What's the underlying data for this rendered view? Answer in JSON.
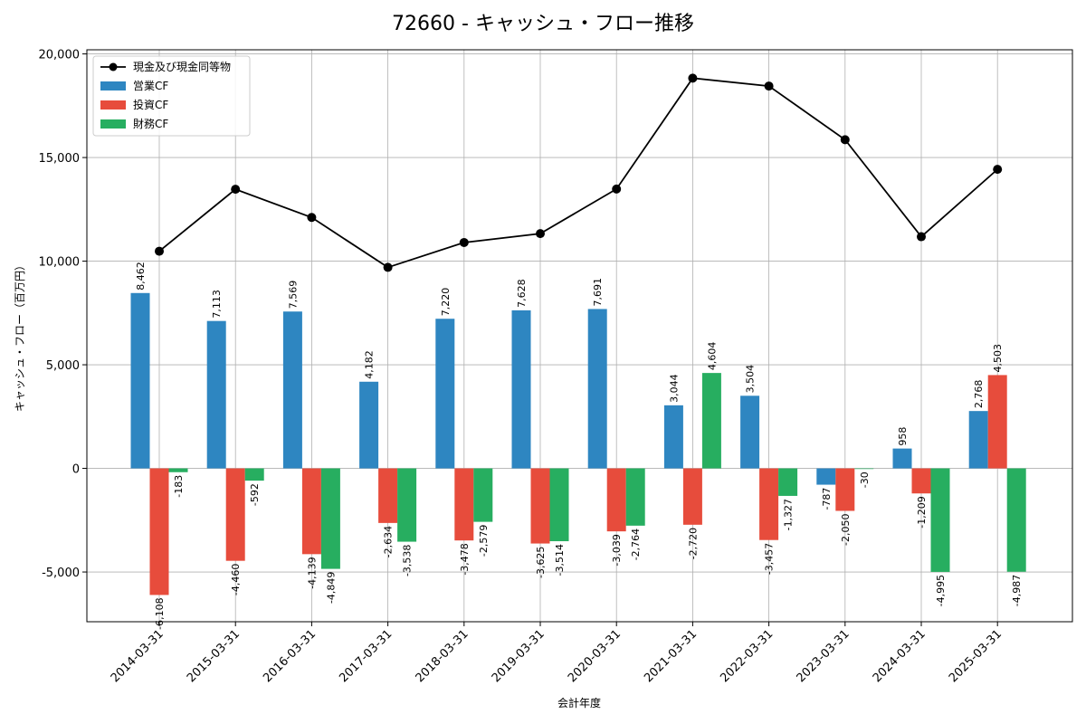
{
  "chart_data": {
    "type": "bar",
    "title": "72660 - キャッシュ・フロー推移",
    "xlabel": "会計年度",
    "ylabel": "キャッシュ・フロー（百万円）",
    "categories": [
      "2014-03-31",
      "2015-03-31",
      "2016-03-31",
      "2017-03-31",
      "2018-03-31",
      "2019-03-31",
      "2020-03-31",
      "2021-03-31",
      "2022-03-31",
      "2023-03-31",
      "2024-03-31",
      "2025-03-31"
    ],
    "ylim": [
      -7400,
      20200
    ],
    "yticks": [
      -5000,
      0,
      5000,
      10000,
      15000,
      20000
    ],
    "ytick_labels": [
      "-5,000",
      "0",
      "5,000",
      "10,000",
      "15,000",
      "20,000"
    ],
    "grid": true,
    "legend_position": "top-left",
    "series": [
      {
        "name": "営業CF",
        "kind": "bar",
        "color": "#2e86c1",
        "values": [
          8462,
          7113,
          7569,
          4182,
          7220,
          7628,
          7691,
          3044,
          3504,
          -787,
          958,
          2768
        ],
        "labels": [
          "8,462",
          "7,113",
          "7,569",
          "4,182",
          "7,220",
          "7,628",
          "7,691",
          "3,044",
          "3,504",
          "-787",
          "958",
          "2,768"
        ]
      },
      {
        "name": "投資CF",
        "kind": "bar",
        "color": "#e74c3c",
        "values": [
          -6108,
          -4460,
          -4139,
          -2634,
          -3478,
          -3625,
          -3039,
          -2720,
          -3457,
          -2050,
          -1209,
          4503
        ],
        "labels": [
          "-6,108",
          "-4,460",
          "-4,139",
          "-2,634",
          "-3,478",
          "-3,625",
          "-3,039",
          "-2,720",
          "-3,457",
          "-2,050",
          "-1,209",
          "4,503"
        ]
      },
      {
        "name": "財務CF",
        "kind": "bar",
        "color": "#27ae60",
        "values": [
          -183,
          -592,
          -4849,
          -3538,
          -2579,
          -3514,
          -2764,
          4604,
          -1327,
          -30,
          -4995,
          -4987
        ],
        "labels": [
          "-183",
          "-592",
          "-4,849",
          "-3,538",
          "-2,579",
          "-3,514",
          "-2,764",
          "4,604",
          "-1,327",
          "-30",
          "-4,995",
          "-4,987"
        ]
      },
      {
        "name": "現金及び現金同等物",
        "kind": "line",
        "color": "#000000",
        "values": [
          10480,
          13470,
          12110,
          9700,
          10900,
          11330,
          13480,
          18830,
          18450,
          15860,
          11180,
          14430
        ]
      }
    ]
  }
}
